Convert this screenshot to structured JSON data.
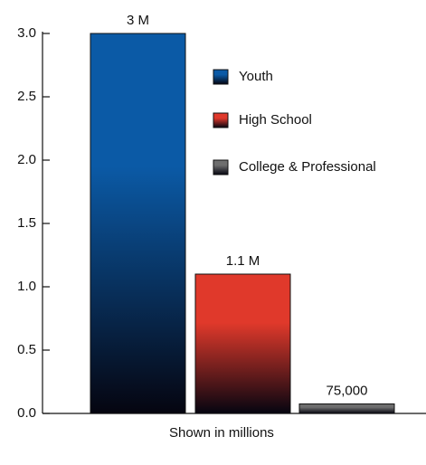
{
  "chart_data": {
    "type": "bar",
    "x_label": "Shown in millions",
    "categories": [
      null
    ],
    "series": [
      {
        "name": "Youth",
        "color": "#0b5aa6",
        "values": [
          3
        ],
        "value_labels": [
          "3 M"
        ]
      },
      {
        "name": "High School",
        "color": "#e0392b",
        "values": [
          1.1
        ],
        "value_labels": [
          "1.1 M"
        ]
      },
      {
        "name": "College & Professional",
        "color": "#6e6e6e",
        "values": [
          0.075
        ],
        "value_labels": [
          "75,000"
        ]
      }
    ],
    "ylim": [
      0,
      3
    ],
    "yticks": [
      {
        "value": 0,
        "label": "0.0"
      },
      0.5,
      {
        "value": 1,
        "label": "1.0"
      },
      1.5,
      {
        "value": 2,
        "label": "2.0"
      },
      2.5,
      {
        "value": 3,
        "label": "3.0"
      }
    ],
    "grid": false,
    "legend": "top-right"
  }
}
